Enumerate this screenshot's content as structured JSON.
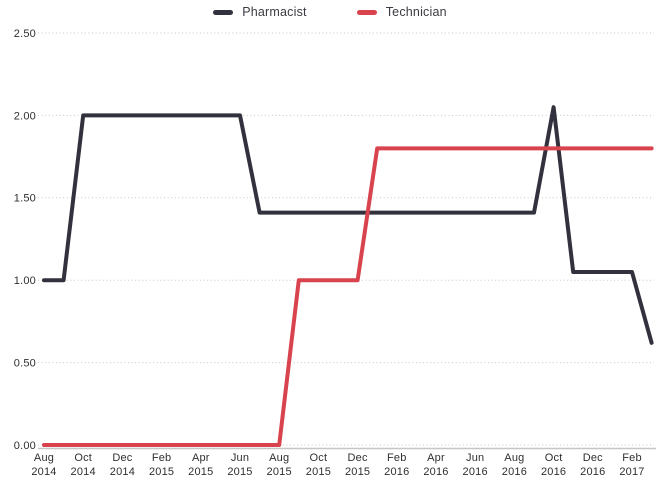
{
  "chart_data": {
    "type": "line",
    "title": "",
    "xlabel": "",
    "ylabel": "",
    "x": [
      "Aug 2014",
      "Sep 2014",
      "Oct 2014",
      "Nov 2014",
      "Dec 2014",
      "Jan 2015",
      "Feb 2015",
      "Mar 2015",
      "Apr 2015",
      "May 2015",
      "Jun 2015",
      "Jul 2015",
      "Aug 2015",
      "Sep 2015",
      "Oct 2015",
      "Nov 2015",
      "Dec 2015",
      "Jan 2016",
      "Feb 2016",
      "Mar 2016",
      "Apr 2016",
      "May 2016",
      "Jun 2016",
      "Jul 2016",
      "Aug 2016",
      "Sep 2016",
      "Oct 2016",
      "Nov 2016",
      "Dec 2016",
      "Jan 2017",
      "Feb 2017",
      "Mar 2017"
    ],
    "x_tick_labels": [
      "Aug 2014",
      "Oct 2014",
      "Dec 2014",
      "Feb 2015",
      "Apr 2015",
      "Jun 2015",
      "Aug 2015",
      "Oct 2015",
      "Dec 2015",
      "Feb 2016",
      "Apr 2016",
      "Jun 2016",
      "Aug 2016",
      "Oct 2016",
      "Dec 2016",
      "Feb 2017"
    ],
    "series": [
      {
        "name": "Pharmacist",
        "color": "#32313e",
        "values": [
          1.0,
          1.0,
          2.0,
          2.0,
          2.0,
          2.0,
          2.0,
          2.0,
          2.0,
          2.0,
          2.0,
          1.41,
          1.41,
          1.41,
          1.41,
          1.41,
          1.41,
          1.41,
          1.41,
          1.41,
          1.41,
          1.41,
          1.41,
          1.41,
          1.41,
          1.41,
          2.05,
          1.05,
          1.05,
          1.05,
          1.05,
          0.62
        ]
      },
      {
        "name": "Technician",
        "color": "#d8434e",
        "values": [
          0,
          0,
          0,
          0,
          0,
          0,
          0,
          0,
          0,
          0,
          0,
          0,
          0,
          1.0,
          1.0,
          1.0,
          1.0,
          1.8,
          1.8,
          1.8,
          1.8,
          1.8,
          1.8,
          1.8,
          1.8,
          1.8,
          1.8,
          1.8,
          1.8,
          1.8,
          1.8,
          1.8
        ]
      }
    ],
    "y_ticks": [
      "0.00",
      "0.50",
      "1.00",
      "1.50",
      "2.00",
      "2.50"
    ],
    "ylim": [
      0,
      2.5
    ],
    "grid": "horizontal-dotted",
    "legend_position": "top-center"
  }
}
